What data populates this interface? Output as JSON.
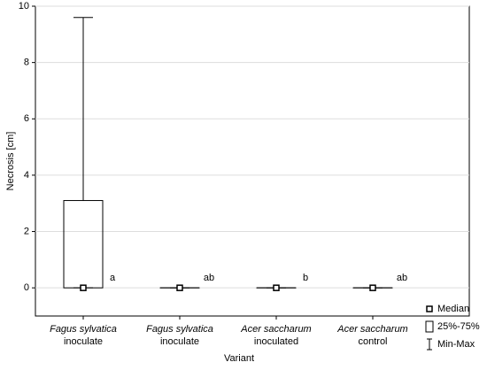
{
  "chart_data": {
    "type": "box",
    "x_label": "Variant",
    "y_label": "Necrosis [cm]",
    "categories": [
      {
        "species": "Fagus sylvatica",
        "treatment": "inoculate"
      },
      {
        "species": "Fagus sylvatica",
        "treatment": "inoculate"
      },
      {
        "species": "Acer saccharum",
        "treatment": "inoculated"
      },
      {
        "species": "Acer saccharum",
        "treatment": "control"
      }
    ],
    "min": [
      0,
      0,
      0,
      0
    ],
    "q1": [
      0,
      0,
      0,
      0
    ],
    "median": [
      0,
      0,
      0,
      0
    ],
    "q3": [
      3.1,
      0,
      0,
      0
    ],
    "max": [
      9.6,
      0,
      0,
      0
    ],
    "letters": [
      "a",
      "ab",
      "b",
      "ab"
    ],
    "legend": {
      "median": "Median",
      "box": "25%-75%",
      "whisker": "Min-Max"
    },
    "color": "#000000",
    "ylim": [
      -1,
      10
    ],
    "yticks": [
      0,
      2,
      4,
      6,
      8,
      10
    ],
    "grid": true
  }
}
